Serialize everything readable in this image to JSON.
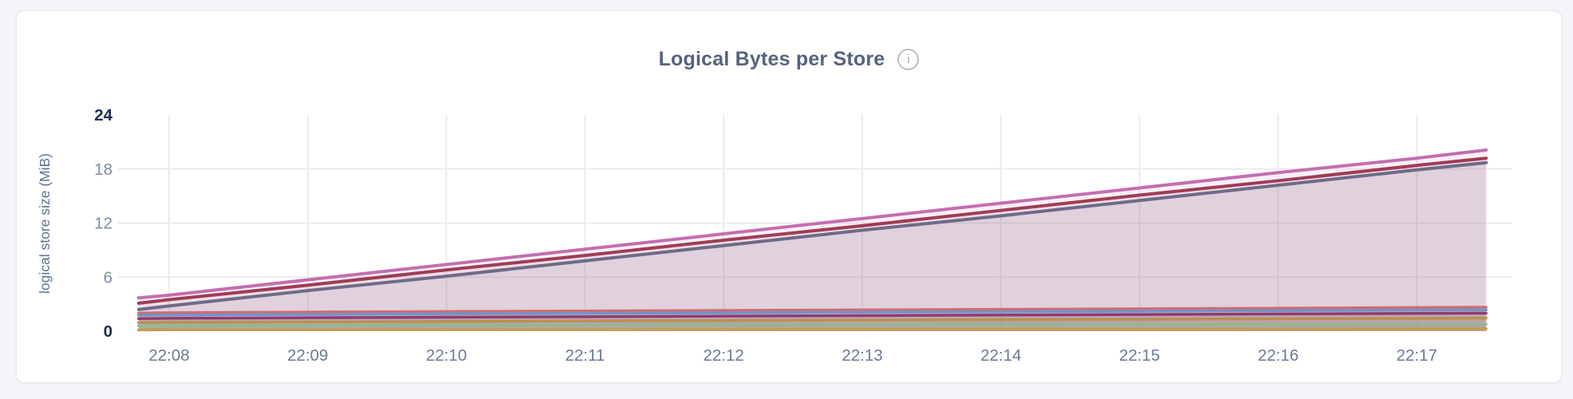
{
  "header": {
    "title": "Logical Bytes per Store",
    "info_icon": "i"
  },
  "colors": {
    "page_background": "#f4f5f8",
    "card_background": "#ffffff",
    "card_border": "#e5e6ea",
    "title_text": "#56627e",
    "axis_label": "#5f7394",
    "axis_tick": "#7d8ca3",
    "axis_tick_strong": "#1c2d4f",
    "x_tick": "#6b7a95",
    "gridline": "#ececef",
    "info_icon_border": "#b9bec7"
  },
  "chart_data": {
    "type": "area",
    "title": "Logical Bytes per Store",
    "xlabel": "",
    "ylabel": "logical store size (MiB)",
    "ylim": [
      0,
      24
    ],
    "y_ticks": [
      0,
      6,
      12,
      18,
      24
    ],
    "y_strong_ticks": [
      0,
      24
    ],
    "y_gridlines": [
      6,
      12,
      18
    ],
    "grid": true,
    "legend_position": "none",
    "x_ticks": [
      "22:08",
      "22:09",
      "22:10",
      "22:11",
      "22:12",
      "22:13",
      "22:14",
      "22:15",
      "22:16",
      "22:17"
    ],
    "t_minutes": [
      -0.22,
      0,
      1,
      2,
      3,
      4,
      5,
      6,
      7,
      8,
      9,
      9.5
    ],
    "series": [
      {
        "id": "series-1",
        "color": "#c36eb0",
        "fill_opacity": 0.1,
        "line_width": 4,
        "values": [
          3.7,
          4.0,
          5.7,
          7.4,
          9.1,
          10.8,
          12.5,
          14.2,
          15.9,
          17.6,
          19.2,
          20.1
        ]
      },
      {
        "id": "series-2",
        "color": "#a03c55",
        "fill_opacity": 0.1,
        "line_width": 4,
        "values": [
          3.1,
          3.5,
          5.1,
          6.8,
          8.4,
          10.1,
          11.7,
          13.4,
          15.1,
          16.7,
          18.4,
          19.2
        ]
      },
      {
        "id": "series-3",
        "color": "#6e6b88",
        "fill_opacity": 0.1,
        "line_width": 4,
        "values": [
          2.4,
          2.8,
          4.5,
          6.1,
          7.8,
          9.5,
          11.2,
          12.8,
          14.5,
          16.2,
          17.9,
          18.7
        ]
      },
      {
        "id": "series-4",
        "color": "#d06c6e",
        "fill_opacity": 0.16,
        "line_width": 3.5,
        "values": [
          2.0,
          2.05,
          2.12,
          2.18,
          2.24,
          2.3,
          2.36,
          2.42,
          2.48,
          2.55,
          2.62,
          2.66
        ]
      },
      {
        "id": "series-5",
        "color": "#7492c8",
        "fill_opacity": 0.16,
        "line_width": 3.5,
        "values": [
          1.78,
          1.8,
          1.86,
          1.92,
          1.98,
          2.04,
          2.1,
          2.16,
          2.22,
          2.28,
          2.34,
          2.37
        ]
      },
      {
        "id": "series-6",
        "color": "#8e3c6e",
        "fill_opacity": 0.16,
        "line_width": 3.5,
        "values": [
          1.4,
          1.43,
          1.49,
          1.55,
          1.61,
          1.67,
          1.73,
          1.79,
          1.85,
          1.91,
          1.97,
          2.0
        ]
      },
      {
        "id": "series-7",
        "color": "#b8924f",
        "fill_opacity": 0.16,
        "line_width": 3.5,
        "values": [
          0.95,
          0.98,
          1.03,
          1.08,
          1.13,
          1.18,
          1.23,
          1.28,
          1.33,
          1.38,
          1.42,
          1.45
        ]
      },
      {
        "id": "series-8",
        "color": "#8dbb90",
        "fill_opacity": 0.16,
        "line_width": 3.5,
        "values": [
          0.6,
          0.61,
          0.63,
          0.65,
          0.66,
          0.68,
          0.7,
          0.71,
          0.73,
          0.74,
          0.75,
          0.76
        ]
      },
      {
        "id": "series-9",
        "color": "#c39b55",
        "fill_opacity": 0.16,
        "line_width": 3.5,
        "values": [
          0.14,
          0.15,
          0.16,
          0.17,
          0.18,
          0.19,
          0.2,
          0.21,
          0.22,
          0.23,
          0.24,
          0.25
        ]
      }
    ]
  }
}
